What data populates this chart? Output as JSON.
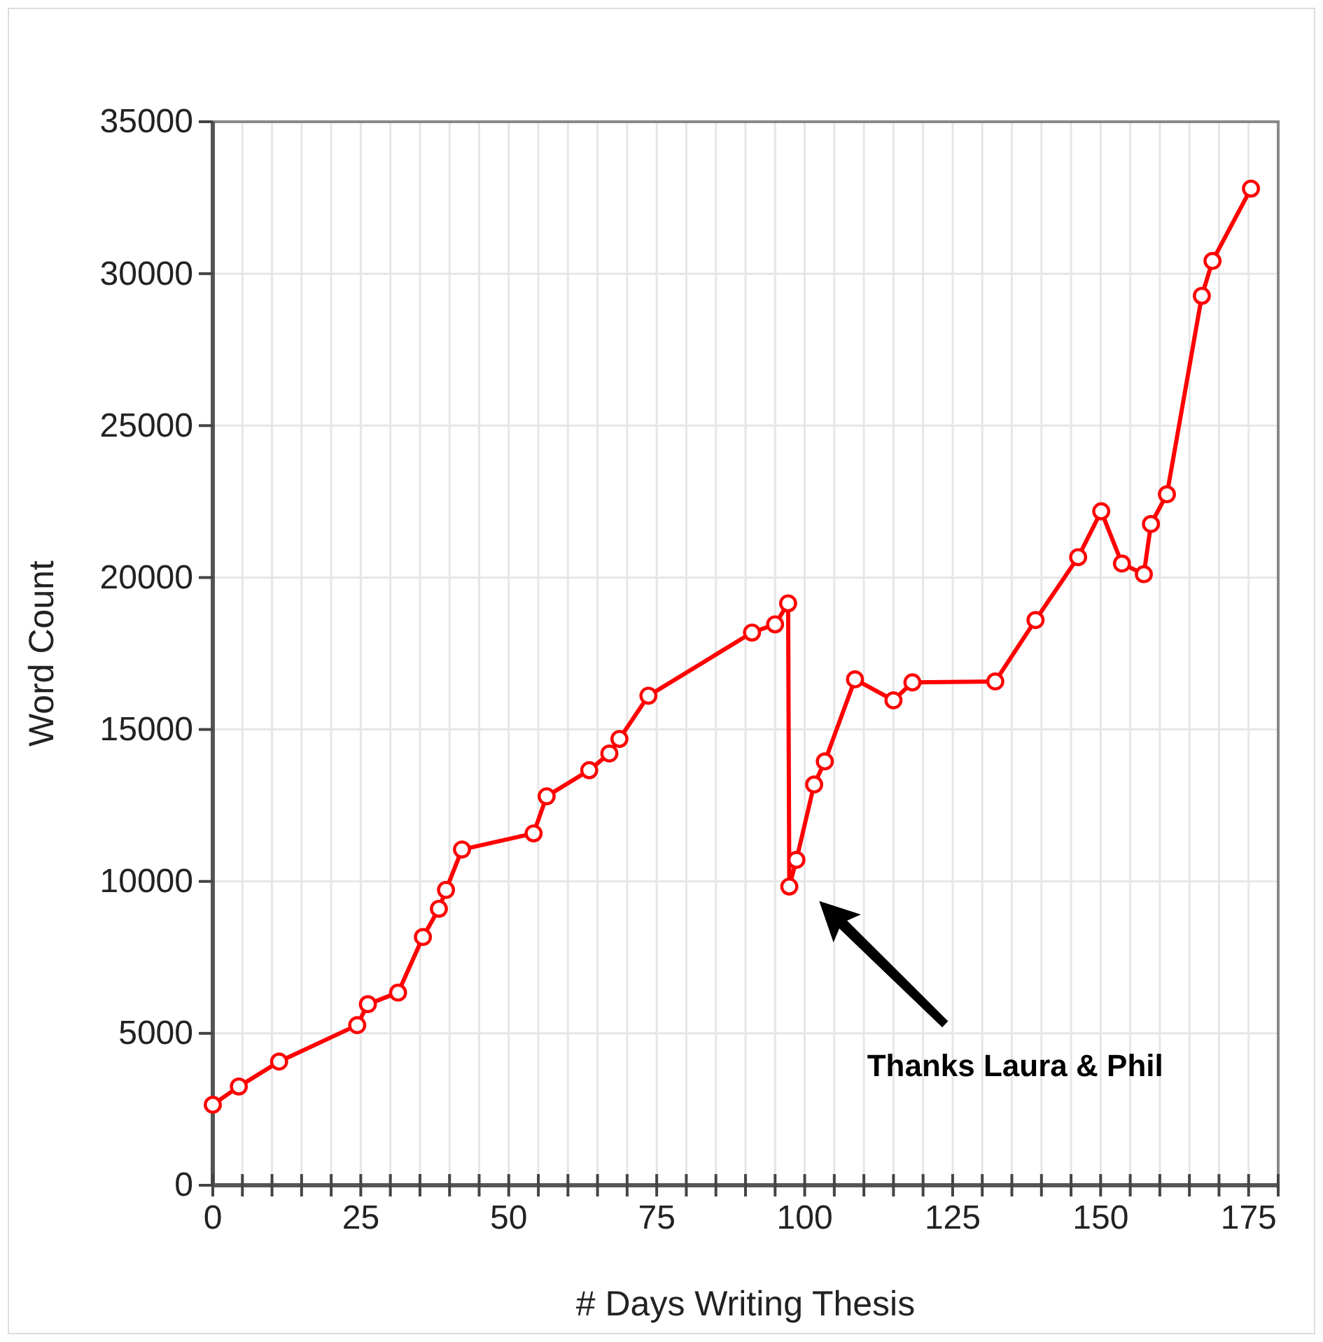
{
  "chart_data": {
    "type": "line",
    "xlabel": "# Days Writing Thesis",
    "ylabel": "Word Count",
    "x": [
      0,
      4.4,
      11.2,
      24.4,
      26.2,
      31.3,
      35.5,
      38.2,
      39.4,
      42.1,
      54.2,
      56.4,
      63.6,
      67,
      68.7,
      73.6,
      91.1,
      95,
      97.2,
      97.4,
      98.6,
      101.6,
      103.4,
      108.5,
      115,
      118.2,
      132.2,
      139,
      146.2,
      150.1,
      153.6,
      157.3,
      158.5,
      161.2,
      167.1,
      168.9,
      175.4
    ],
    "series": [
      {
        "color": "#ff0000",
        "values": [
          2650,
          3250,
          4070,
          5270,
          5960,
          6340,
          8170,
          9100,
          9720,
          11050,
          11580,
          12800,
          13660,
          14210,
          14690,
          16110,
          18190,
          18460,
          19150,
          9830,
          10710,
          13190,
          13950,
          16650,
          15960,
          16550,
          16580,
          18600,
          20670,
          22180,
          20460,
          20110,
          21760,
          22740,
          29270,
          30420,
          32800
        ]
      }
    ],
    "xlim": [
      0,
      180
    ],
    "xticks": [
      0,
      {
        "value": 5,
        "label": null
      },
      {
        "value": 10,
        "label": null
      },
      {
        "value": 15,
        "label": null
      },
      {
        "value": 20,
        "label": null
      },
      25,
      {
        "value": 30,
        "label": null
      },
      {
        "value": 35,
        "label": null
      },
      {
        "value": 40,
        "label": null
      },
      {
        "value": 45,
        "label": null
      },
      50,
      {
        "value": 55,
        "label": null
      },
      {
        "value": 60,
        "label": null
      },
      {
        "value": 65,
        "label": null
      },
      {
        "value": 70,
        "label": null
      },
      75,
      {
        "value": 80,
        "label": null
      },
      {
        "value": 85,
        "label": null
      },
      {
        "value": 90,
        "label": null
      },
      {
        "value": 95,
        "label": null
      },
      100,
      {
        "value": 105,
        "label": null
      },
      {
        "value": 110,
        "label": null
      },
      {
        "value": 115,
        "label": null
      },
      {
        "value": 120,
        "label": null
      },
      125,
      {
        "value": 130,
        "label": null
      },
      {
        "value": 135,
        "label": null
      },
      {
        "value": 140,
        "label": null
      },
      {
        "value": 145,
        "label": null
      },
      150,
      {
        "value": 155,
        "label": null
      },
      {
        "value": 160,
        "label": null
      },
      {
        "value": 165,
        "label": null
      },
      {
        "value": 170,
        "label": null
      },
      175,
      {
        "value": 180,
        "label": null
      }
    ],
    "ylim": [
      0,
      35000
    ],
    "yticks": [
      0,
      5000,
      10000,
      15000,
      20000,
      25000,
      30000,
      35000
    ],
    "grid": true,
    "marker": "circle",
    "line_style": "solid",
    "annotations": [
      "Thanks Laura & Phil"
    ]
  }
}
